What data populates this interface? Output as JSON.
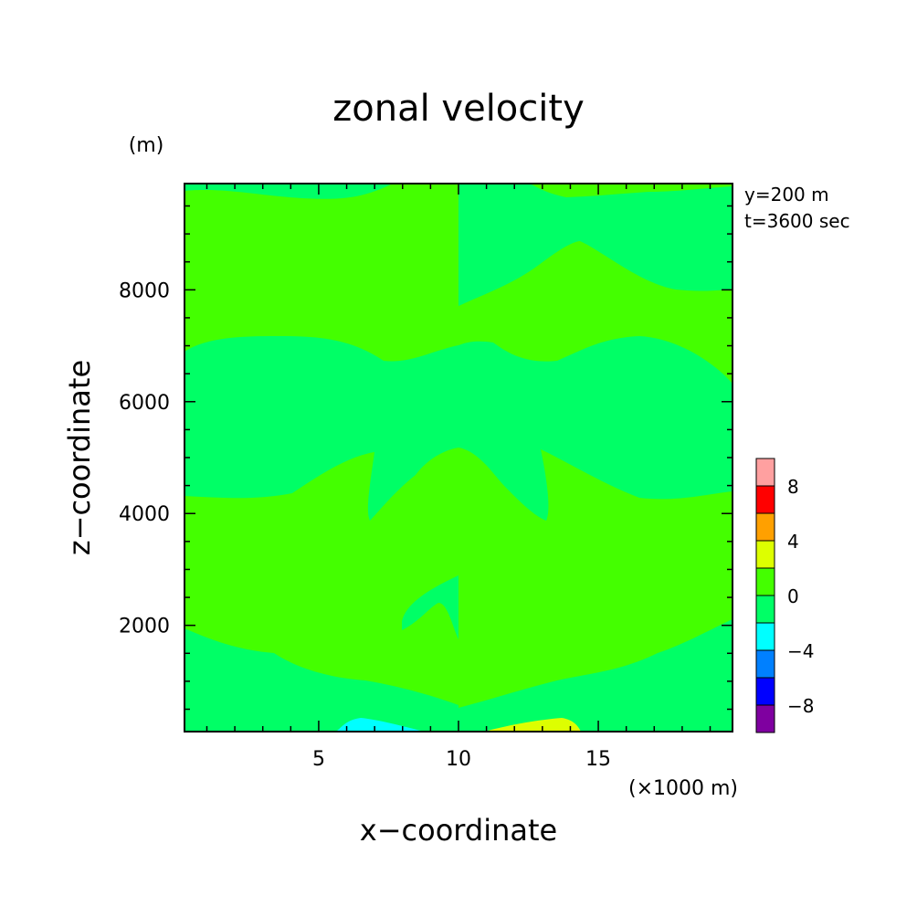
{
  "chart_data": {
    "type": "heatmap",
    "title": "zonal velocity",
    "xlabel": "x−coordinate",
    "ylabel": "z−coordinate",
    "x_unit": "(×1000 m)",
    "y_unit": "(m)",
    "annotations": [
      "y=200 m",
      "t=3600 sec"
    ],
    "xlim": [
      0.2,
      19.8
    ],
    "ylim": [
      100,
      9900
    ],
    "x_ticks": [
      5,
      10,
      15
    ],
    "y_ticks": [
      2000,
      4000,
      6000,
      8000
    ],
    "colorbar": {
      "levels": [
        -10,
        -8,
        -6,
        -4,
        -2,
        0,
        2,
        4,
        6,
        8,
        10
      ],
      "tick_labels": [
        "−8",
        "−4",
        "0",
        "4",
        "8"
      ],
      "tick_values": [
        -8,
        -4,
        0,
        4,
        8
      ],
      "colors": [
        "#7f00a0",
        "#0000ff",
        "#0080ff",
        "#00ffff",
        "#00ff66",
        "#44ff00",
        "#ddff00",
        "#ffa000",
        "#ff0000",
        "#ffa0a0"
      ]
    },
    "regions": [
      {
        "value_range": [
          0,
          2
        ],
        "x_span": [
          0.2,
          9.8
        ],
        "z_span": [
          100,
          9900
        ]
      },
      {
        "value_range": [
          -2,
          0
        ],
        "x_span": [
          9.8,
          19.8
        ],
        "z_span": [
          100,
          9900
        ]
      },
      {
        "value_range": [
          -4,
          -2
        ],
        "x_span": [
          5.8,
          9.0
        ],
        "z_span": [
          100,
          350
        ]
      },
      {
        "value_range": [
          2,
          4
        ],
        "x_span": [
          11.0,
          14.2
        ],
        "z_span": [
          100,
          350
        ]
      }
    ]
  }
}
